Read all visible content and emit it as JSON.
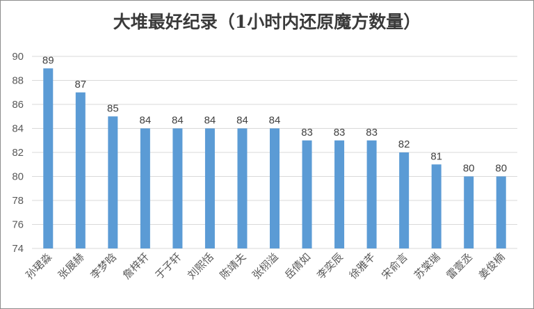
{
  "chart_data": {
    "type": "bar",
    "title": "大堆最好纪录（1小时内还原魔方数量）",
    "categories": [
      "孙珺淼",
      "张展赫",
      "李梦晗",
      "詹梓轩",
      "于子轩",
      "刘熙恬",
      "陈靖夫",
      "张栩溢",
      "岳倩如",
      "李奕辰",
      "徐雅芊",
      "宋俞言",
      "苏棠瑞",
      "雷壹丞",
      "姜俊楠"
    ],
    "values": [
      89,
      87,
      85,
      84,
      84,
      84,
      84,
      84,
      83,
      83,
      83,
      82,
      81,
      80,
      80
    ],
    "yticks": [
      74,
      76,
      78,
      80,
      82,
      84,
      86,
      88,
      90
    ],
    "ylim": [
      74,
      90
    ],
    "grid": true,
    "bar_color": "#5b9bd5",
    "grid_color": "#d9d9d9"
  }
}
